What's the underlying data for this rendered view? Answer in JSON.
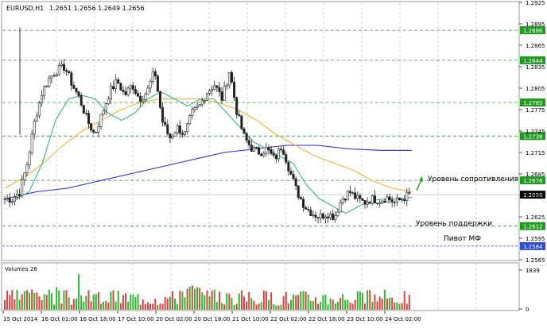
{
  "header": {
    "symbol_tf": "EURUSD,H1",
    "ohlc": "1.2651 1.2656 1.2649 1.2656"
  },
  "colors": {
    "bull": "#222222",
    "bear": "#222222",
    "ma_fast": "#3fb27f",
    "ma_mid": "#f2b33d",
    "ma_slow": "#2a2ad0",
    "level_line": "#2e9a2e",
    "level_badge": "#1f9b1f",
    "price_badge": "#000000",
    "vol_up": "#2fb52f",
    "vol_down": "#e04040",
    "pivot_line": "#3a3aff",
    "grid": "#d9d9d9"
  },
  "chart_data": {
    "type": "candlestick",
    "ylim": [
      1.2565,
      1.2925
    ],
    "y_ticks": [
      "1.2925",
      "1.2895",
      "1.2865",
      "1.2835",
      "1.2805",
      "1.2775",
      "1.2745",
      "1.2715",
      "1.2685",
      "1.2655",
      "1.2625",
      "1.2595",
      "1.2565"
    ],
    "x_ticks": [
      "15 Oct 2014",
      "16 Oct 01:00",
      "16 Oct 18:00",
      "17 Oct 10:00",
      "20 Oct 02:00",
      "20 Oct 18:00",
      "21 Oct 10:00",
      "22 Oct 02:00",
      "22 Oct 18:00",
      "23 Oct 10:00",
      "24 Oct 02:00"
    ],
    "levels": [
      {
        "value": 1.2886,
        "label": "1.2886"
      },
      {
        "value": 1.2844,
        "label": "1.2844"
      },
      {
        "value": 1.2785,
        "label": "1.2785"
      },
      {
        "value": 1.2738,
        "label": "1.2738"
      },
      {
        "value": 1.2676,
        "label": "1.2676"
      },
      {
        "value": 1.2612,
        "label": "1.2612"
      }
    ],
    "current_price": {
      "value": 1.2656,
      "label": "1.2656"
    },
    "pivot": {
      "value": 1.2584,
      "label": "1.2584"
    },
    "annotations": {
      "resistance": "Уровень сопротивления",
      "support": "Уровень поддержки",
      "pivot": "Пивот МФ"
    },
    "volume": {
      "title": "Volumes 26",
      "ticks": [
        "1839",
        "0"
      ],
      "max": 1839
    },
    "key_closes": [
      1.265,
      1.265,
      1.266,
      1.27,
      1.276,
      1.28,
      1.282,
      1.283,
      1.2835,
      1.281,
      1.279,
      1.276,
      1.274,
      1.277,
      1.28,
      1.2815,
      1.2795,
      1.281,
      1.279,
      1.28,
      1.283,
      1.276,
      1.2735,
      1.275,
      1.274,
      1.277,
      1.278,
      1.28,
      1.281,
      1.279,
      1.283,
      1.277,
      1.2735,
      1.272,
      1.2715,
      1.272,
      1.2705,
      1.2725,
      1.269,
      1.266,
      1.264,
      1.263,
      1.2625,
      1.263,
      1.2625,
      1.265,
      1.266,
      1.265,
      1.2645,
      1.265,
      1.2648,
      1.2652,
      1.2645,
      1.265,
      1.2656
    ],
    "ma_fast": [
      1.265,
      1.266,
      1.27,
      1.276,
      1.279,
      1.2795,
      1.279,
      1.277,
      1.276,
      1.277,
      1.279,
      1.28,
      1.279,
      1.278,
      1.279,
      1.279,
      1.277,
      1.275,
      1.273,
      1.272,
      1.271,
      1.27,
      1.267,
      1.265,
      1.264,
      1.263,
      1.264,
      1.2648,
      1.265,
      1.265,
      1.2652
    ],
    "ma_mid": [
      1.2665,
      1.268,
      1.27,
      1.2725,
      1.2745,
      1.276,
      1.2775,
      1.2785,
      1.279,
      1.279,
      1.279,
      1.2785,
      1.2775,
      1.276,
      1.274,
      1.2725,
      1.271,
      1.27,
      1.269,
      1.2675,
      1.2665,
      1.266
    ],
    "ma_slow": [
      1.265,
      1.266,
      1.2665,
      1.2675,
      1.2685,
      1.2695,
      1.2705,
      1.2715,
      1.272,
      1.2725,
      1.2725,
      1.272,
      1.2718,
      1.2718
    ]
  }
}
